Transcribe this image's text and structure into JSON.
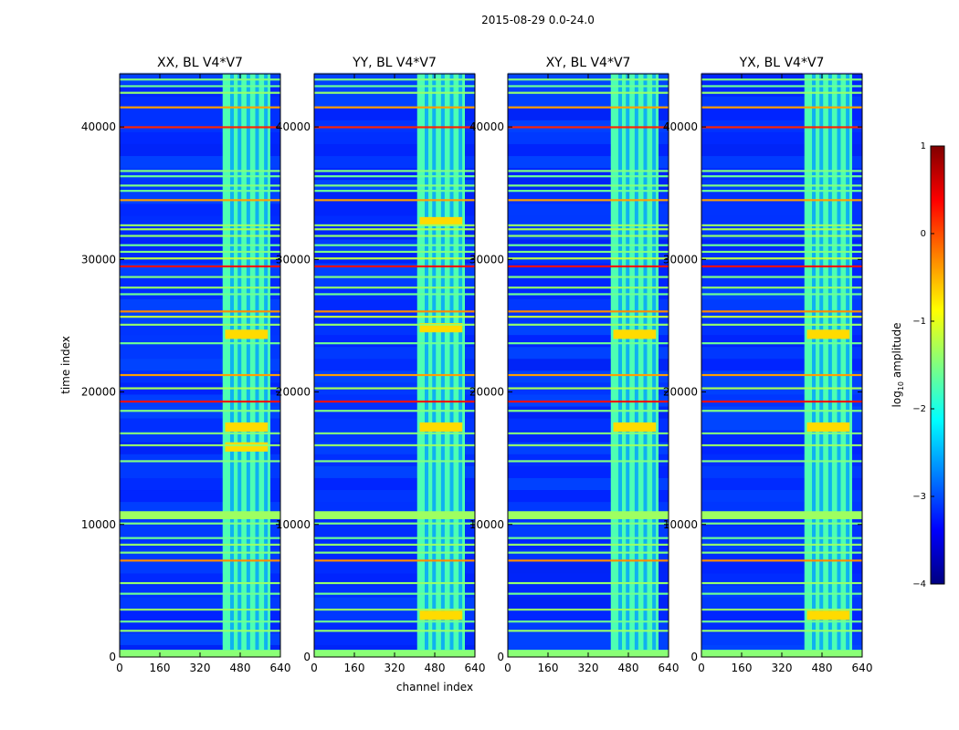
{
  "chart_data": {
    "type": "heatmap",
    "suptitle": "2015-08-29 0.0-24.0",
    "xlabel": "channel index",
    "ylabel": "time index",
    "xlim": [
      0,
      640
    ],
    "ylim": [
      0,
      44000
    ],
    "xticks": [
      0,
      160,
      320,
      480,
      640
    ],
    "yticks": [
      0,
      10000,
      20000,
      30000,
      40000
    ],
    "panels": [
      {
        "title": "XX, BL V4*V7",
        "strong_block_times": [
          15500,
          17000,
          24000
        ]
      },
      {
        "title": "YY, BL V4*V7",
        "strong_block_times": [
          2800,
          17000,
          24500,
          32500
        ]
      },
      {
        "title": "XY, BL V4*V7",
        "strong_block_times": [
          17000,
          24000
        ]
      },
      {
        "title": "YX, BL V4*V7",
        "strong_block_times": [
          2800,
          17000,
          24000
        ]
      }
    ],
    "rfi_channel_range": [
      410,
      600
    ],
    "rfi_time_bands": [
      {
        "t": 400,
        "level": -1.6
      },
      {
        "t": 1900,
        "level": -1.4
      },
      {
        "t": 2600,
        "level": -1.6
      },
      {
        "t": 3500,
        "level": -1.4
      },
      {
        "t": 4700,
        "level": -1.6
      },
      {
        "t": 5500,
        "level": -1.4
      },
      {
        "t": 7200,
        "level": -0.3
      },
      {
        "t": 7800,
        "level": -1.5
      },
      {
        "t": 8400,
        "level": -1.4
      },
      {
        "t": 8900,
        "level": -1.6
      },
      {
        "t": 10000,
        "level": -1.5
      },
      {
        "t": 10600,
        "level": -1.3
      },
      {
        "t": 14700,
        "level": -1.5
      },
      {
        "t": 15900,
        "level": -1.4
      },
      {
        "t": 16800,
        "level": -1.5
      },
      {
        "t": 18500,
        "level": -1.5
      },
      {
        "t": 19200,
        "level": 0.3
      },
      {
        "t": 20200,
        "level": -1.3
      },
      {
        "t": 21200,
        "level": -0.4
      },
      {
        "t": 23600,
        "level": -1.6
      },
      {
        "t": 25000,
        "level": -1.4
      },
      {
        "t": 25600,
        "level": -1.2
      },
      {
        "t": 26000,
        "level": -0.3
      },
      {
        "t": 27300,
        "level": -1.6
      },
      {
        "t": 27800,
        "level": -1.4
      },
      {
        "t": 28600,
        "level": -1.5
      },
      {
        "t": 29400,
        "level": 0.3
      },
      {
        "t": 30000,
        "level": -1.2
      },
      {
        "t": 30500,
        "level": -1.5
      },
      {
        "t": 31000,
        "level": -1.6
      },
      {
        "t": 31700,
        "level": -1.4
      },
      {
        "t": 32200,
        "level": -1.3
      },
      {
        "t": 32500,
        "level": -1.4
      },
      {
        "t": 34400,
        "level": -0.4
      },
      {
        "t": 35100,
        "level": -1.6
      },
      {
        "t": 35500,
        "level": -1.5
      },
      {
        "t": 36200,
        "level": -1.6
      },
      {
        "t": 36600,
        "level": -1.5
      },
      {
        "t": 39900,
        "level": 0.2
      },
      {
        "t": 41400,
        "level": -0.4
      },
      {
        "t": 42500,
        "level": -1.4
      },
      {
        "t": 43000,
        "level": -1.6
      },
      {
        "t": 43500,
        "level": -1.5
      }
    ],
    "colorbar": {
      "label_prefix": "log",
      "label_sub": "10",
      "label_suffix": " amplitude",
      "range": [
        -4,
        1
      ],
      "ticks": [
        "1",
        "0",
        "−1",
        "−2",
        "−3",
        "−4"
      ],
      "colormap": [
        "#000080",
        "#0000ff",
        "#0080ff",
        "#00ffff",
        "#80ff80",
        "#ffff00",
        "#ff8000",
        "#ff0000",
        "#800000"
      ]
    }
  }
}
